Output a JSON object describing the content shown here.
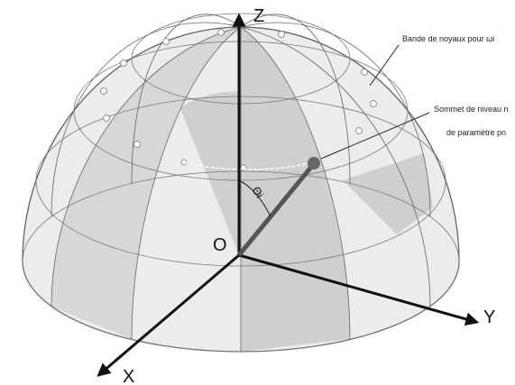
{
  "axes": {
    "z": "Z",
    "y": "Y",
    "x": "X",
    "origin": "O"
  },
  "angle": "Θi",
  "callouts": [
    {
      "lines": [
        "Bande de noyaux pour ωi"
      ]
    },
    {
      "lines": [
        "Sommet de niveau n",
        "de paramètre pn"
      ]
    }
  ]
}
